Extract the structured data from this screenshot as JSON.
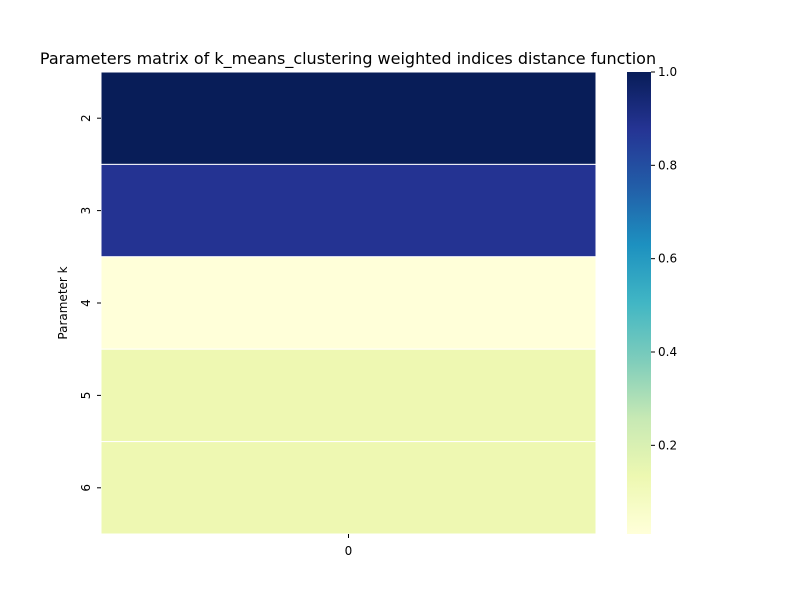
{
  "chart_data": {
    "type": "heatmap",
    "title": "Parameters matrix of k_means_clustering weighted indices distance function",
    "xlabel": "",
    "ylabel": "Parameter k",
    "columns": [
      "0"
    ],
    "rows": [
      "2",
      "3",
      "4",
      "5",
      "6"
    ],
    "values": [
      [
        1.0
      ],
      [
        0.88
      ],
      [
        0.01
      ],
      [
        0.13
      ],
      [
        0.13
      ]
    ],
    "colorbar": {
      "range": [
        0.01,
        1.0
      ],
      "ticks": [
        "0.2",
        "0.4",
        "0.6",
        "0.8",
        "1.0"
      ],
      "tick_values": [
        0.2,
        0.4,
        0.6,
        0.8,
        1.0
      ],
      "colormap": "YlGnBu",
      "stops": [
        "#ffffd9",
        "#edf8b1",
        "#c7e9b4",
        "#7fcdbb",
        "#41b6c4",
        "#1d91c0",
        "#225ea8",
        "#253494",
        "#081d58"
      ]
    },
    "grid": false
  }
}
